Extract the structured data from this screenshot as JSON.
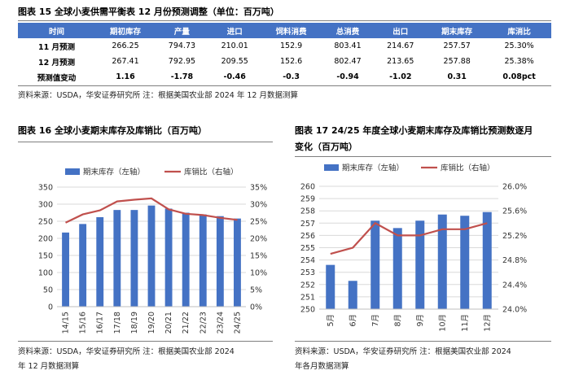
{
  "table15": {
    "title": "图表 15 全球小麦供需平衡表 12 月份预测调整（单位：百万吨）",
    "headers": [
      "时间",
      "期初库存",
      "产量",
      "进口",
      "饲料消费",
      "总消费",
      "出口",
      "期末库存",
      "库消比"
    ],
    "rows": [
      [
        "11 月预测",
        "266.25",
        "794.73",
        "210.01",
        "152.9",
        "803.41",
        "214.67",
        "257.57",
        "25.30%"
      ],
      [
        "12 月预测",
        "267.41",
        "792.95",
        "209.55",
        "152.6",
        "802.47",
        "213.65",
        "257.88",
        "25.38%"
      ],
      [
        "预测值变动",
        "1.16",
        "-1.78",
        "-0.46",
        "-0.3",
        "-0.94",
        "-1.02",
        "0.31",
        "0.08pct"
      ]
    ],
    "source": "资料来源：USDA，华安证券研究所   注：根据美国农业部 2024 年 12 月数据测算"
  },
  "fig16": {
    "title": "图表 16 全球小麦期末库存及库销比（百万吨）",
    "source_line1": "资料来源：USDA，华安证券研究所  注：根据美国农业部 2024",
    "source_line2": "年 12 月数据测算"
  },
  "fig17": {
    "title_line1": "图表 17 24/25 年度全球小麦期末库存及库销比预测数逐月",
    "title_line2": "变化（百万吨）",
    "source_line1": "资料来源：USDA，华安证券研究所   注：根据美国农业部 2024",
    "source_line2": "年各月数据测算"
  },
  "colors": {
    "bar": "#4472c4",
    "line": "#c0504d",
    "header": "#4472c4"
  },
  "chart_data": [
    {
      "type": "bar",
      "title": "图表 16 全球小麦期末库存及库销比（百万吨）",
      "categories": [
        "14/15",
        "15/16",
        "16/17",
        "17/18",
        "18/19",
        "19/20",
        "20/21",
        "21/22",
        "22/23",
        "23/24",
        "24/25"
      ],
      "series": [
        {
          "name": "期末库存（左轴）",
          "type": "bar",
          "axis": "left",
          "values": [
            217,
            242,
            262,
            283,
            283,
            296,
            287,
            275,
            270,
            265,
            258
          ]
        },
        {
          "name": "库销比（右轴）",
          "type": "line",
          "axis": "right",
          "values": [
            24.6,
            27.0,
            28.2,
            30.8,
            31.3,
            31.7,
            28.5,
            27.2,
            26.8,
            26.0,
            25.4
          ]
        }
      ],
      "ylim_left": [
        0,
        350
      ],
      "ylim_right": [
        0,
        35
      ],
      "yticks_left": [
        "0",
        "50",
        "100",
        "150",
        "200",
        "250",
        "300",
        "350"
      ],
      "yticks_right": [
        "0%",
        "5%",
        "10%",
        "15%",
        "20%",
        "25%",
        "30%",
        "35%"
      ],
      "legend": "top"
    },
    {
      "type": "bar",
      "title": "图表 17 24/25 年度全球小麦期末库存及库销比预测数逐月变化（百万吨）",
      "categories": [
        "5月",
        "6月",
        "7月",
        "8月",
        "9月",
        "10月",
        "11月",
        "12月"
      ],
      "series": [
        {
          "name": "期末库存（左轴）",
          "type": "bar",
          "axis": "left",
          "values": [
            253.6,
            252.3,
            257.2,
            256.6,
            257.2,
            257.7,
            257.6,
            257.9
          ]
        },
        {
          "name": "库销比（右轴）",
          "type": "line",
          "axis": "right",
          "values": [
            24.9,
            25.0,
            25.4,
            25.2,
            25.2,
            25.3,
            25.3,
            25.4
          ]
        }
      ],
      "ylim_left": [
        250,
        260
      ],
      "ylim_right": [
        24.0,
        26.0
      ],
      "yticks_left": [
        "250",
        "251",
        "252",
        "253",
        "254",
        "255",
        "256",
        "257",
        "258",
        "259",
        "260"
      ],
      "yticks_right": [
        "24.0%",
        "24.4%",
        "24.8%",
        "25.2%",
        "25.6%",
        "26.0%"
      ],
      "legend": "top"
    }
  ]
}
